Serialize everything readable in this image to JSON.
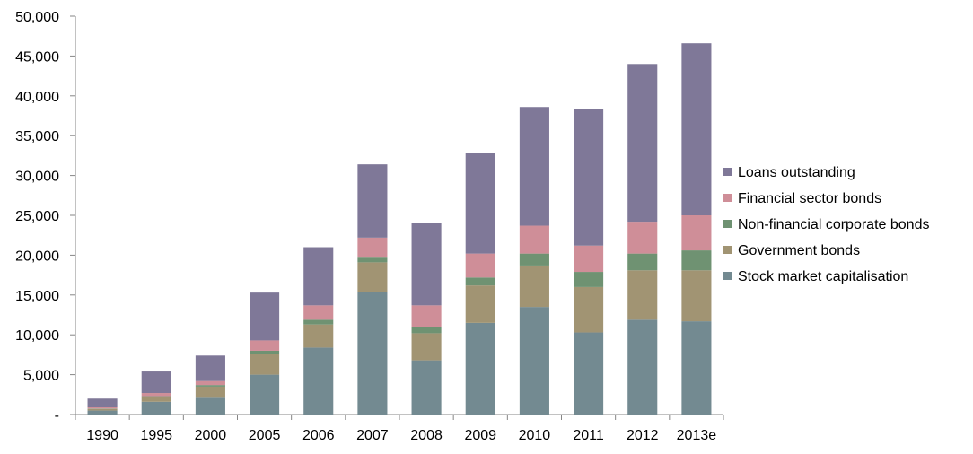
{
  "chart_data": {
    "type": "bar",
    "stacked": true,
    "title": "",
    "xlabel": "",
    "ylabel": "",
    "categories": [
      "1990",
      "1995",
      "2000",
      "2005",
      "2006",
      "2007",
      "2008",
      "2009",
      "2010",
      "2011",
      "2012",
      "2013e"
    ],
    "ylim": [
      0,
      50000
    ],
    "yticks": [
      0,
      5000,
      10000,
      15000,
      20000,
      25000,
      30000,
      35000,
      40000,
      45000,
      50000
    ],
    "ytick_labels": [
      "-",
      "5,000",
      "10,000",
      "15,000",
      "20,000",
      "25,000",
      "30,000",
      "35,000",
      "40,000",
      "45,000",
      "50,000"
    ],
    "grid": false,
    "legend_position": "right",
    "series": [
      {
        "name": "Stock market capitalisation",
        "color": "#738a91",
        "values": [
          500,
          1600,
          2100,
          5000,
          8400,
          15400,
          6800,
          11500,
          13500,
          10300,
          11900,
          11700
        ]
      },
      {
        "name": "Government bonds",
        "color": "#a19473",
        "values": [
          200,
          600,
          1400,
          2600,
          2900,
          3700,
          3400,
          4700,
          5200,
          5700,
          6200,
          6400
        ]
      },
      {
        "name": "Non-financial corporate bonds",
        "color": "#6f9272",
        "values": [
          50,
          100,
          200,
          400,
          600,
          700,
          800,
          1000,
          1500,
          1900,
          2100,
          2500
        ]
      },
      {
        "name": "Financial sector bonds",
        "color": "#cf8e98",
        "values": [
          150,
          400,
          500,
          1300,
          1800,
          2400,
          2700,
          3000,
          3500,
          3300,
          4000,
          4400
        ]
      },
      {
        "name": "Loans outstanding",
        "color": "#7f7898",
        "values": [
          1100,
          2700,
          3200,
          6000,
          7300,
          9200,
          10300,
          12600,
          14900,
          17200,
          19800,
          21600
        ]
      }
    ],
    "legend_order": [
      "Loans outstanding",
      "Financial sector bonds",
      "Non-financial corporate bonds",
      "Government bonds",
      "Stock market capitalisation"
    ]
  }
}
